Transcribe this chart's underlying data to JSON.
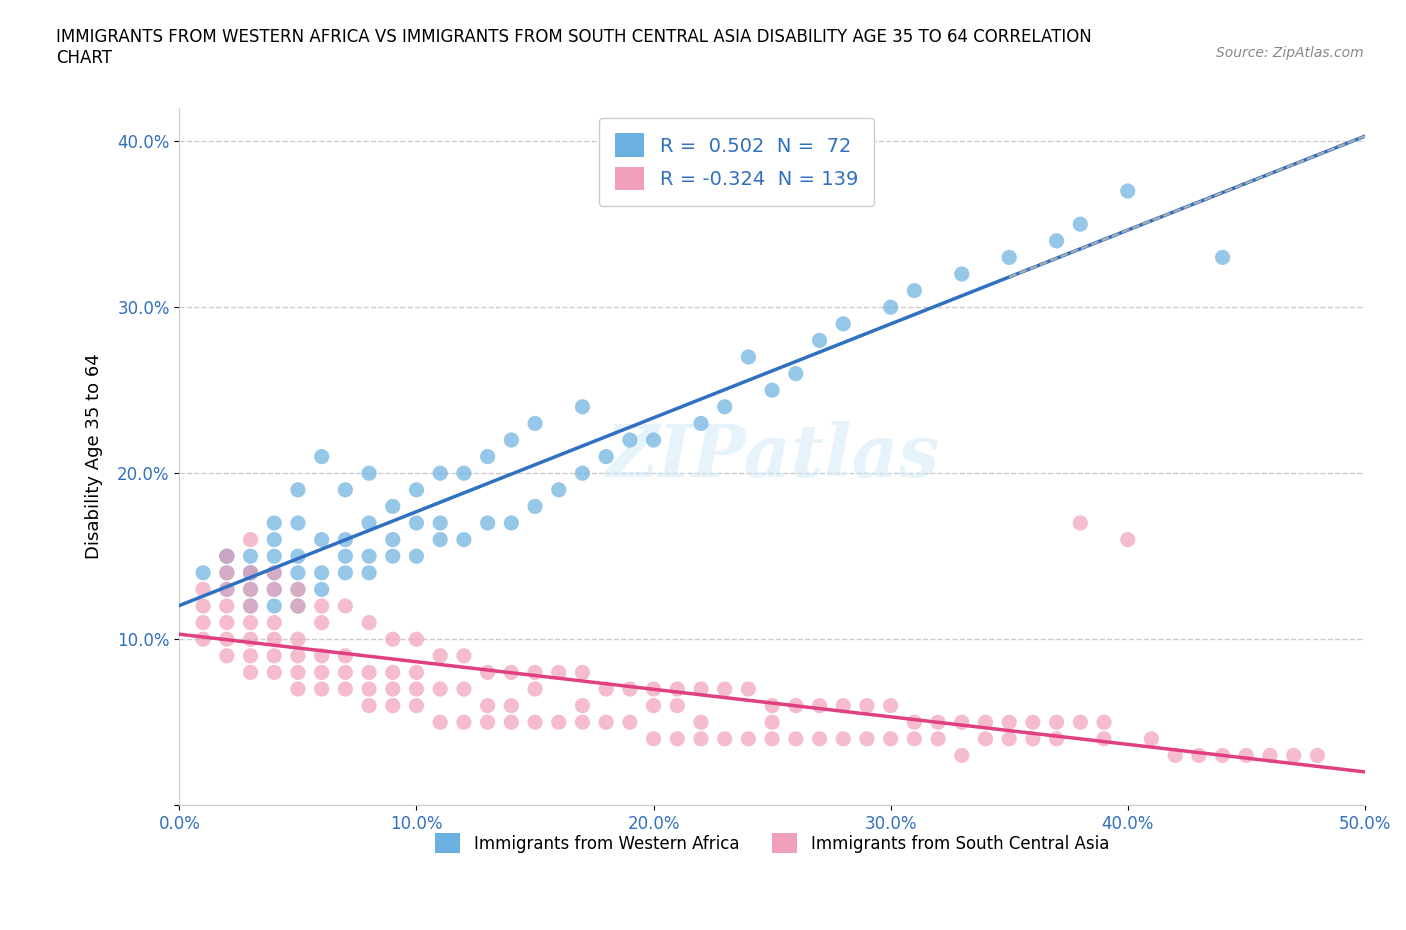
{
  "title": "IMMIGRANTS FROM WESTERN AFRICA VS IMMIGRANTS FROM SOUTH CENTRAL ASIA DISABILITY AGE 35 TO 64 CORRELATION\nCHART",
  "source_text": "Source: ZipAtlas.com",
  "xlabel": "",
  "ylabel": "Disability Age 35 to 64",
  "xlim": [
    0.0,
    0.5
  ],
  "ylim": [
    0.0,
    0.42
  ],
  "xticks": [
    0.0,
    0.1,
    0.2,
    0.3,
    0.4,
    0.5
  ],
  "yticks": [
    0.0,
    0.1,
    0.2,
    0.3,
    0.4
  ],
  "xtick_labels": [
    "0.0%",
    "10.0%",
    "20.0%",
    "30.0%",
    "40.0%",
    "50.0%"
  ],
  "ytick_labels": [
    "",
    "10.0%",
    "20.0%",
    "30.0%",
    "40.0%"
  ],
  "blue_color": "#6ab0e0",
  "pink_color": "#f0a0b8",
  "blue_line_color": "#3070c0",
  "pink_line_color": "#e04080",
  "trend_line_color": "#b0b0b0",
  "R_blue": 0.502,
  "N_blue": 72,
  "R_pink": -0.324,
  "N_pink": 139,
  "legend_label_blue": "Immigrants from Western Africa",
  "legend_label_pink": "Immigrants from South Central Asia",
  "watermark": "ZIPatlas",
  "blue_scatter_x": [
    0.01,
    0.02,
    0.02,
    0.02,
    0.02,
    0.03,
    0.03,
    0.03,
    0.03,
    0.03,
    0.04,
    0.04,
    0.04,
    0.04,
    0.04,
    0.04,
    0.05,
    0.05,
    0.05,
    0.05,
    0.05,
    0.05,
    0.06,
    0.06,
    0.06,
    0.06,
    0.07,
    0.07,
    0.07,
    0.07,
    0.08,
    0.08,
    0.08,
    0.08,
    0.09,
    0.09,
    0.09,
    0.1,
    0.1,
    0.1,
    0.11,
    0.11,
    0.11,
    0.12,
    0.12,
    0.13,
    0.13,
    0.14,
    0.14,
    0.15,
    0.15,
    0.16,
    0.17,
    0.17,
    0.18,
    0.19,
    0.2,
    0.22,
    0.23,
    0.24,
    0.25,
    0.26,
    0.27,
    0.28,
    0.3,
    0.31,
    0.33,
    0.35,
    0.37,
    0.38,
    0.4,
    0.44
  ],
  "blue_scatter_y": [
    0.14,
    0.13,
    0.14,
    0.15,
    0.15,
    0.12,
    0.13,
    0.14,
    0.14,
    0.15,
    0.12,
    0.13,
    0.14,
    0.15,
    0.16,
    0.17,
    0.12,
    0.13,
    0.14,
    0.15,
    0.17,
    0.19,
    0.13,
    0.14,
    0.16,
    0.21,
    0.14,
    0.15,
    0.16,
    0.19,
    0.14,
    0.15,
    0.17,
    0.2,
    0.15,
    0.16,
    0.18,
    0.15,
    0.17,
    0.19,
    0.16,
    0.17,
    0.2,
    0.16,
    0.2,
    0.17,
    0.21,
    0.17,
    0.22,
    0.18,
    0.23,
    0.19,
    0.2,
    0.24,
    0.21,
    0.22,
    0.22,
    0.23,
    0.24,
    0.27,
    0.25,
    0.26,
    0.28,
    0.29,
    0.3,
    0.31,
    0.32,
    0.33,
    0.34,
    0.35,
    0.37,
    0.33
  ],
  "pink_scatter_x": [
    0.01,
    0.01,
    0.01,
    0.01,
    0.02,
    0.02,
    0.02,
    0.02,
    0.02,
    0.02,
    0.03,
    0.03,
    0.03,
    0.03,
    0.03,
    0.03,
    0.03,
    0.04,
    0.04,
    0.04,
    0.04,
    0.04,
    0.05,
    0.05,
    0.05,
    0.05,
    0.05,
    0.06,
    0.06,
    0.06,
    0.06,
    0.07,
    0.07,
    0.07,
    0.08,
    0.08,
    0.08,
    0.09,
    0.09,
    0.09,
    0.1,
    0.1,
    0.1,
    0.11,
    0.11,
    0.12,
    0.12,
    0.13,
    0.13,
    0.14,
    0.14,
    0.15,
    0.15,
    0.16,
    0.17,
    0.17,
    0.18,
    0.19,
    0.2,
    0.2,
    0.21,
    0.21,
    0.22,
    0.22,
    0.23,
    0.24,
    0.25,
    0.25,
    0.26,
    0.27,
    0.28,
    0.29,
    0.3,
    0.31,
    0.32,
    0.33,
    0.34,
    0.35,
    0.36,
    0.37,
    0.38,
    0.39,
    0.4,
    0.41,
    0.42,
    0.43,
    0.44,
    0.45,
    0.46,
    0.47,
    0.48,
    0.02,
    0.03,
    0.04,
    0.05,
    0.06,
    0.07,
    0.08,
    0.09,
    0.1,
    0.11,
    0.12,
    0.13,
    0.14,
    0.15,
    0.16,
    0.17,
    0.18,
    0.19,
    0.2,
    0.21,
    0.22,
    0.23,
    0.24,
    0.25,
    0.26,
    0.27,
    0.28,
    0.29,
    0.3,
    0.31,
    0.32,
    0.33,
    0.34,
    0.35,
    0.36,
    0.37,
    0.38,
    0.39
  ],
  "pink_scatter_y": [
    0.1,
    0.11,
    0.12,
    0.13,
    0.09,
    0.1,
    0.11,
    0.12,
    0.13,
    0.14,
    0.08,
    0.09,
    0.1,
    0.11,
    0.12,
    0.13,
    0.14,
    0.08,
    0.09,
    0.1,
    0.11,
    0.13,
    0.07,
    0.08,
    0.09,
    0.1,
    0.12,
    0.07,
    0.08,
    0.09,
    0.11,
    0.07,
    0.08,
    0.09,
    0.06,
    0.07,
    0.08,
    0.06,
    0.07,
    0.08,
    0.06,
    0.07,
    0.08,
    0.05,
    0.07,
    0.05,
    0.07,
    0.05,
    0.06,
    0.05,
    0.06,
    0.05,
    0.07,
    0.05,
    0.05,
    0.06,
    0.05,
    0.05,
    0.04,
    0.06,
    0.04,
    0.06,
    0.04,
    0.05,
    0.04,
    0.04,
    0.04,
    0.05,
    0.04,
    0.04,
    0.04,
    0.04,
    0.04,
    0.04,
    0.04,
    0.03,
    0.04,
    0.04,
    0.04,
    0.04,
    0.17,
    0.04,
    0.16,
    0.04,
    0.03,
    0.03,
    0.03,
    0.03,
    0.03,
    0.03,
    0.03,
    0.15,
    0.16,
    0.14,
    0.13,
    0.12,
    0.12,
    0.11,
    0.1,
    0.1,
    0.09,
    0.09,
    0.08,
    0.08,
    0.08,
    0.08,
    0.08,
    0.07,
    0.07,
    0.07,
    0.07,
    0.07,
    0.07,
    0.07,
    0.06,
    0.06,
    0.06,
    0.06,
    0.06,
    0.06,
    0.05,
    0.05,
    0.05,
    0.05,
    0.05,
    0.05,
    0.05,
    0.05,
    0.05
  ]
}
